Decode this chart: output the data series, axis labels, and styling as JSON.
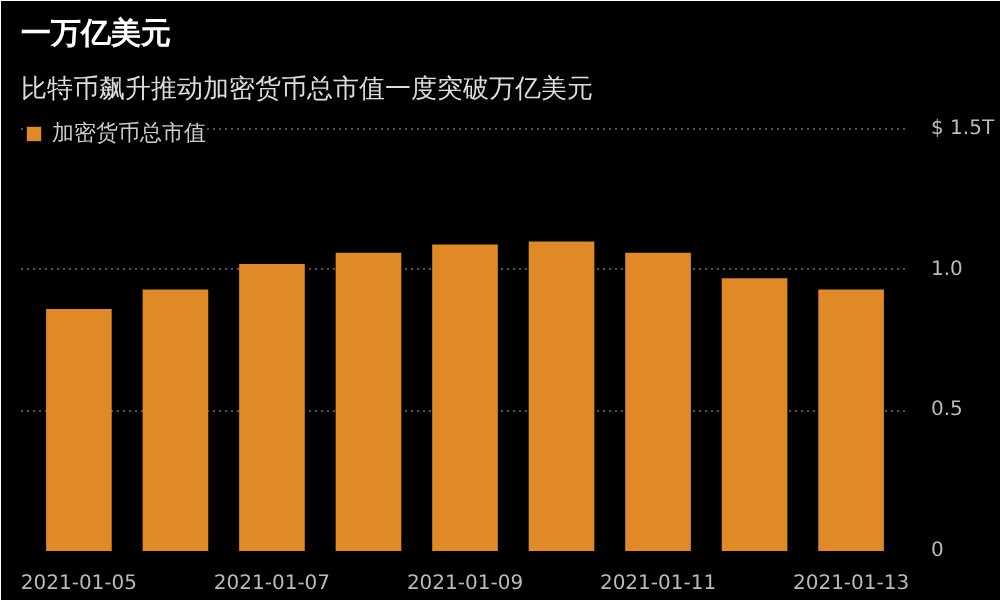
{
  "chart_data": {
    "type": "bar",
    "title": "一万亿美元",
    "subtitle": "比特币飙升推动加密货币总市值一度突破万亿美元",
    "categories": [
      "2021-01-05",
      null,
      "2021-01-07",
      null,
      "2021-01-09",
      null,
      "2021-01-11",
      null,
      "2021-01-13"
    ],
    "series": [
      {
        "name": "加密货币总市值",
        "color": "#e08a27",
        "values": [
          0.86,
          0.93,
          1.02,
          1.06,
          1.09,
          1.1,
          1.06,
          0.97,
          0.93
        ]
      }
    ],
    "ylim": [
      0,
      1.55
    ],
    "yticks": [
      0,
      0.5,
      {
        "value": 1.0,
        "label": "1.0"
      },
      {
        "value": 1.5,
        "label": "$ 1.5T"
      }
    ],
    "grid": "y",
    "legend": "top left"
  }
}
